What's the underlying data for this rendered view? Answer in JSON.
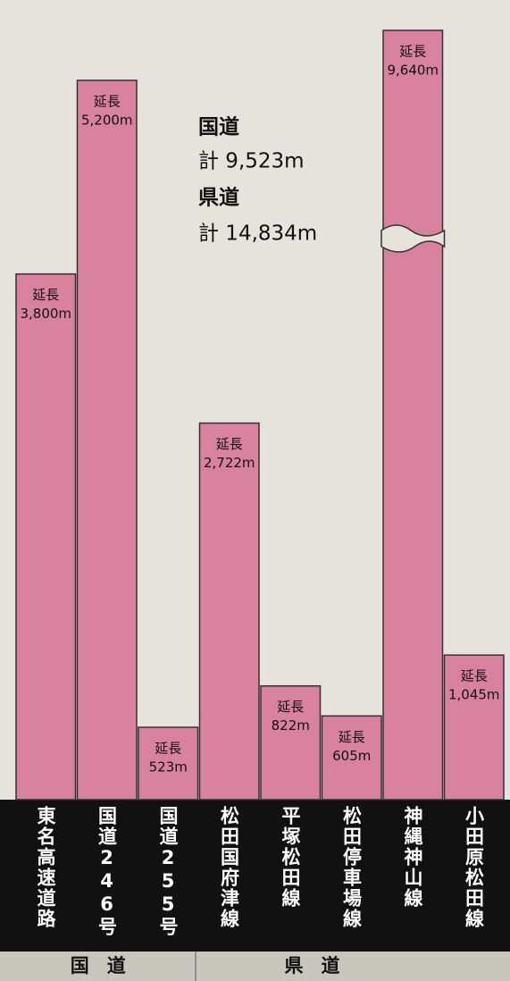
{
  "chart_data": {
    "type": "bar",
    "categories": [
      "東名高速道路",
      "国道246号",
      "国道255号",
      "松田国府津線",
      "平塚松田線",
      "松田停車場線",
      "神縄神山線",
      "小田原松田線"
    ],
    "values": [
      3800,
      5200,
      523,
      2722,
      822,
      605,
      9640,
      1045
    ],
    "value_labels": [
      "3,800m",
      "5,200m",
      "523m",
      "2,722m",
      "822m",
      "605m",
      "9,640m",
      "1,045m"
    ],
    "value_prefix": "延長",
    "color": "#d9829f",
    "ylim": [
      0,
      5600
    ],
    "axis_break": true,
    "groups": [
      "国道",
      "県道"
    ],
    "annotations": [
      {
        "title": "国道",
        "text": "計 9,523m"
      },
      {
        "title": "県道",
        "text": "計 14,834m"
      }
    ]
  }
}
